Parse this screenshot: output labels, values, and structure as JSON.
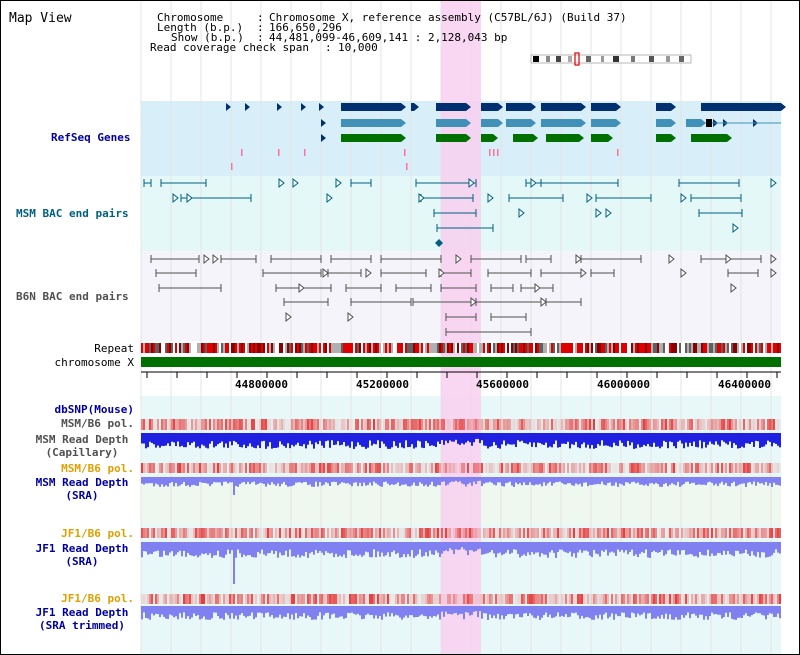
{
  "title": "Map View",
  "info": {
    "chromosome_label": "Chromosome",
    "chromosome_value": "Chromosome X, reference assembly (C57BL/6J) (Build 37)",
    "length_label": "Length (b.p.)",
    "length_value": "166,650,296",
    "show_label": "Show (b.p.)",
    "show_value": "44,481,099-46,609,141 : 2,128,043 bp",
    "coverage_label": "Read coverage check span",
    "coverage_value": "10,000"
  },
  "tracks": {
    "refseq": "RefSeq Genes",
    "msm_bac": "MSM BAC end pairs",
    "b6n_bac": "B6N BAC end pairs",
    "repeat": "Repeat",
    "chromosome": "chromosome X",
    "dbsnp": "dbSNP(Mouse)",
    "msm_b6_pol_1": "MSM/B6 pol.",
    "msm_depth_cap_1": "MSM Read Depth",
    "msm_depth_cap_2": "(Capillary)",
    "msm_b6_pol_2": "MSM/B6 pol.",
    "msm_depth_sra_1": "MSM Read Depth",
    "msm_depth_sra_2": "(SRA)",
    "jf1_b6_pol_1": "JF1/B6 pol.",
    "jf1_depth_sra_1": "JF1 Read Depth",
    "jf1_depth_sra_2": "(SRA)",
    "jf1_b6_pol_2": "JF1/B6 pol.",
    "jf1_depth_trim_1": "JF1 Read Depth",
    "jf1_depth_trim_2": "(SRA trimmed)"
  },
  "axis": {
    "ticks": [
      "44800000",
      "45200000",
      "45600000",
      "46000000",
      "46400000"
    ]
  },
  "colors": {
    "highlight": "#f8d0f0",
    "refseq_bg": "#d8eef8",
    "bac_bg": "#e4f8f8",
    "gene_dark": "#003070",
    "gene_mid": "#4090b8",
    "gene_green": "#007000",
    "depth_dark": "#2020e0",
    "depth_light": "#8080f0",
    "label_blue": "#0000a0",
    "label_orange": "#e0a000",
    "label_grey": "#505050",
    "label_teal": "#006080"
  }
}
